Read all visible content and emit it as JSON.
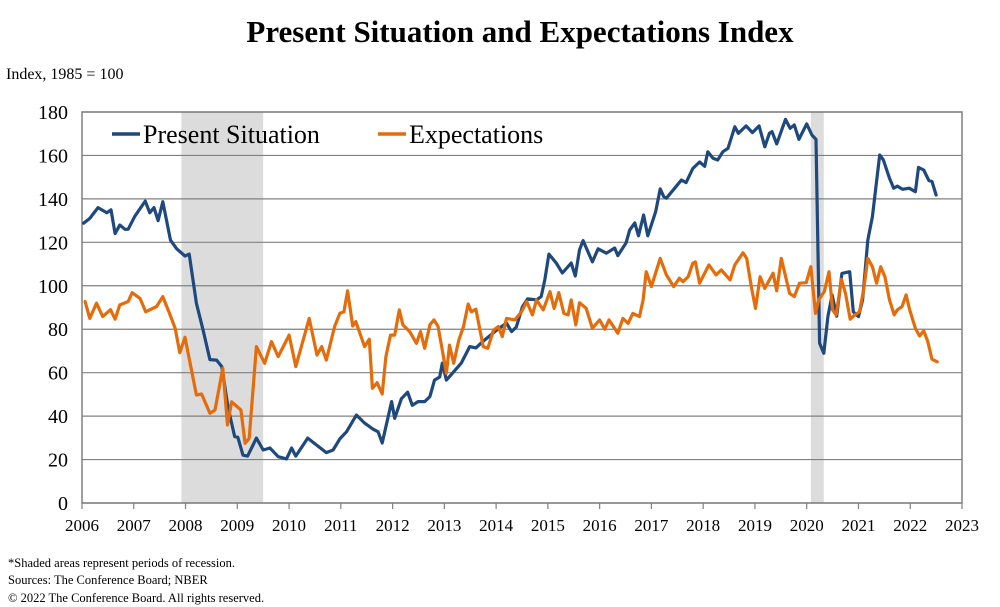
{
  "chart_data": {
    "type": "line",
    "title": "Present Situation and Expectations Index",
    "ylabel": "Index, 1985 = 100",
    "xlabel": "",
    "xlim": [
      2006,
      2023
    ],
    "ylim": [
      0,
      180
    ],
    "x_ticks": [
      "2006",
      "2007",
      "2008",
      "2009",
      "2010",
      "2011",
      "2012",
      "2013",
      "2014",
      "2015",
      "2016",
      "2017",
      "2018",
      "2019",
      "2020",
      "2021",
      "2022",
      "2023"
    ],
    "y_ticks": [
      "0",
      "20",
      "40",
      "60",
      "80",
      "100",
      "120",
      "140",
      "160",
      "180"
    ],
    "grid": true,
    "legend_position": "top-left",
    "recessions": [
      [
        2007.92,
        2009.5
      ],
      [
        2020.08,
        2020.33
      ]
    ],
    "recession_color": "#dcdcdc",
    "series": [
      {
        "name": "Present Situation",
        "color": "#1f497d",
        "x": [
          2006.03,
          2006.15,
          2006.31,
          2006.48,
          2006.56,
          2006.64,
          2006.73,
          2006.83,
          2006.89,
          2007.02,
          2007.22,
          2007.31,
          2007.39,
          2007.47,
          2007.56,
          2007.71,
          2007.83,
          2007.99,
          2008.07,
          2008.21,
          2008.34,
          2008.47,
          2008.6,
          2008.7,
          2008.82,
          2008.95,
          2009.01,
          2009.11,
          2009.2,
          2009.37,
          2009.5,
          2009.63,
          2009.79,
          2009.95,
          2010.05,
          2010.13,
          2010.36,
          2010.53,
          2010.72,
          2010.85,
          2010.98,
          2011.11,
          2011.3,
          2011.46,
          2011.62,
          2011.72,
          2011.8,
          2011.98,
          2012.04,
          2012.17,
          2012.29,
          2012.38,
          2012.49,
          2012.62,
          2012.72,
          2012.81,
          2012.91,
          2012.96,
          2013.04,
          2013.16,
          2013.33,
          2013.49,
          2013.61,
          2013.74,
          2014.01,
          2014.2,
          2014.3,
          2014.39,
          2014.51,
          2014.61,
          2014.78,
          2014.87,
          2014.94,
          2015.02,
          2015.16,
          2015.28,
          2015.45,
          2015.53,
          2015.61,
          2015.68,
          2015.86,
          2015.97,
          2016.13,
          2016.29,
          2016.35,
          2016.51,
          2016.58,
          2016.68,
          2016.75,
          2016.85,
          2016.93,
          2017.08,
          2017.17,
          2017.24,
          2017.29,
          2017.45,
          2017.58,
          2017.67,
          2017.8,
          2017.93,
          2018.03,
          2018.09,
          2018.19,
          2018.28,
          2018.38,
          2018.48,
          2018.61,
          2018.68,
          2018.83,
          2018.95,
          2019.08,
          2019.19,
          2019.28,
          2019.33,
          2019.42,
          2019.59,
          2019.68,
          2019.76,
          2019.85,
          2020.0,
          2020.1,
          2020.18,
          2020.25,
          2020.33,
          2020.41,
          2020.49,
          2020.58,
          2020.68,
          2020.83,
          2020.9,
          2021.0,
          2021.08,
          2021.18,
          2021.27,
          2021.41,
          2021.48,
          2021.6,
          2021.68,
          2021.75,
          2021.85,
          2021.98,
          2022.1,
          2022.16,
          2022.26,
          2022.36,
          2022.42,
          2022.5
        ],
        "values": [
          128.8,
          131,
          136,
          133.6,
          135,
          124,
          128,
          126,
          126,
          132,
          139,
          133.6,
          136,
          130,
          138.7,
          121,
          117,
          113.7,
          114.6,
          92,
          79.6,
          66,
          65.8,
          62.8,
          44,
          30.5,
          30.3,
          22,
          21.6,
          29.9,
          24.4,
          25.3,
          21.3,
          20.3,
          25.3,
          21.6,
          29.9,
          26.7,
          23.2,
          24.4,
          29.5,
          32.8,
          40.5,
          36.8,
          34,
          32.8,
          27.6,
          46.7,
          39,
          48,
          51,
          45,
          46.7,
          46.7,
          49,
          56.6,
          58,
          64.4,
          56.6,
          59.8,
          64.5,
          72,
          71.4,
          74.3,
          79.6,
          82.8,
          78.9,
          81,
          90.4,
          94,
          93.5,
          95,
          102.7,
          114.6,
          110.5,
          105.9,
          110.5,
          104.5,
          116.5,
          120.8,
          111,
          117,
          115,
          117.4,
          113.9,
          119.7,
          125.7,
          128.9,
          123,
          132.6,
          123,
          134,
          144.6,
          141,
          140.3,
          144.9,
          148.7,
          147.5,
          154,
          157,
          155,
          161.7,
          158.7,
          157.9,
          161.7,
          163.3,
          173.2,
          170.2,
          173.6,
          170.5,
          173.6,
          164,
          170.2,
          171,
          165.3,
          176.6,
          172.5,
          174,
          167.4,
          174.5,
          169.4,
          167.4,
          73.5,
          68.9,
          85.8,
          95.8,
          86,
          105.7,
          106.5,
          88,
          85.8,
          93.5,
          121,
          131.8,
          160.2,
          158,
          149.5,
          144.9,
          145.9,
          144.4,
          144.9,
          143.3,
          154.5,
          153.3,
          148.4,
          148,
          141.8
        ]
      },
      {
        "name": "Expectations",
        "color": "#e46c0a",
        "x": [
          2006.06,
          2006.15,
          2006.28,
          2006.4,
          2006.55,
          2006.64,
          2006.73,
          2006.89,
          2006.97,
          2007.12,
          2007.23,
          2007.44,
          2007.56,
          2007.69,
          2007.8,
          2007.89,
          2007.99,
          2008.21,
          2008.31,
          2008.47,
          2008.57,
          2008.72,
          2008.81,
          2008.89,
          2009.07,
          2009.15,
          2009.23,
          2009.37,
          2009.53,
          2009.66,
          2009.79,
          2010.0,
          2010.13,
          2010.39,
          2010.54,
          2010.63,
          2010.72,
          2010.88,
          2010.98,
          2011.06,
          2011.13,
          2011.23,
          2011.29,
          2011.46,
          2011.55,
          2011.61,
          2011.7,
          2011.8,
          2011.87,
          2011.96,
          2012.04,
          2012.13,
          2012.2,
          2012.33,
          2012.46,
          2012.54,
          2012.62,
          2012.72,
          2012.8,
          2012.88,
          2013.04,
          2013.1,
          2013.18,
          2013.28,
          2013.37,
          2013.46,
          2013.52,
          2013.61,
          2013.75,
          2013.84,
          2013.95,
          2014.04,
          2014.12,
          2014.2,
          2014.36,
          2014.49,
          2014.59,
          2014.7,
          2014.78,
          2014.91,
          2015.04,
          2015.12,
          2015.21,
          2015.31,
          2015.39,
          2015.45,
          2015.54,
          2015.61,
          2015.74,
          2015.86,
          2016.0,
          2016.1,
          2016.18,
          2016.35,
          2016.45,
          2016.55,
          2016.64,
          2016.77,
          2016.84,
          2016.9,
          2017.0,
          2017.17,
          2017.29,
          2017.43,
          2017.54,
          2017.61,
          2017.71,
          2017.8,
          2017.85,
          2017.93,
          2018.11,
          2018.25,
          2018.35,
          2018.52,
          2018.61,
          2018.77,
          2018.84,
          2018.93,
          2019.01,
          2019.1,
          2019.19,
          2019.35,
          2019.42,
          2019.51,
          2019.67,
          2019.76,
          2019.86,
          2019.99,
          2020.08,
          2020.17,
          2020.23,
          2020.34,
          2020.43,
          2020.5,
          2020.57,
          2020.67,
          2020.75,
          2020.84,
          2020.93,
          2021.02,
          2021.1,
          2021.18,
          2021.27,
          2021.35,
          2021.43,
          2021.51,
          2021.6,
          2021.69,
          2021.75,
          2021.84,
          2021.92,
          2021.99,
          2022.1,
          2022.18,
          2022.26,
          2022.34,
          2022.42,
          2022.52
        ],
        "values": [
          92.7,
          85,
          92,
          85.8,
          89,
          84.6,
          91.2,
          92.7,
          96.8,
          94.2,
          88,
          90.4,
          95,
          87.3,
          80.4,
          69.2,
          76.3,
          49.7,
          50.2,
          41.3,
          42.8,
          62,
          35.9,
          46.6,
          42.8,
          27.5,
          29.8,
          72,
          64.3,
          74.3,
          67.4,
          77.3,
          62.8,
          85,
          68.1,
          72,
          65.8,
          81.2,
          87.3,
          88,
          97.7,
          81.5,
          83.5,
          72,
          75.4,
          52.8,
          55.4,
          50.2,
          67.4,
          77.3,
          77.3,
          88.9,
          82,
          78.9,
          73.5,
          78.9,
          71.2,
          82,
          84.3,
          81.2,
          59.7,
          72.7,
          64.3,
          75,
          81.2,
          91.6,
          88,
          89.2,
          72,
          71.2,
          79.6,
          81.2,
          76.6,
          85,
          84.3,
          88,
          92.7,
          86.6,
          93.5,
          88.9,
          97.3,
          89.6,
          96.8,
          87.3,
          86.6,
          93.5,
          82,
          92.2,
          89.6,
          80.4,
          84.3,
          80,
          84.3,
          78.1,
          85,
          82.7,
          87.3,
          85.8,
          93.5,
          106.5,
          99.6,
          112.6,
          105,
          99.6,
          103.5,
          101.9,
          104.2,
          110.4,
          111,
          101.2,
          109.6,
          105,
          107.3,
          102.7,
          109.6,
          115.2,
          112.6,
          99.6,
          89.6,
          104.2,
          98.8,
          105.8,
          97.7,
          112.6,
          96.5,
          95,
          101.2,
          101.4,
          108.8,
          87.3,
          93.5,
          97.3,
          106.5,
          88.9,
          86.6,
          103,
          96.5,
          84.6,
          86.6,
          88,
          98,
          112.6,
          108.8,
          101.2,
          108.8,
          104.2,
          93.5,
          86.6,
          88.9,
          90.4,
          95.8,
          88.9,
          80.4,
          76.9,
          79.3,
          74.3,
          66.2,
          65
        ]
      }
    ]
  },
  "footnotes": {
    "shading": "*Shaded areas represent periods of recession.",
    "sources": "Sources: The Conference Board; NBER",
    "copyright": "© 2022 The Conference Board. All rights reserved."
  }
}
